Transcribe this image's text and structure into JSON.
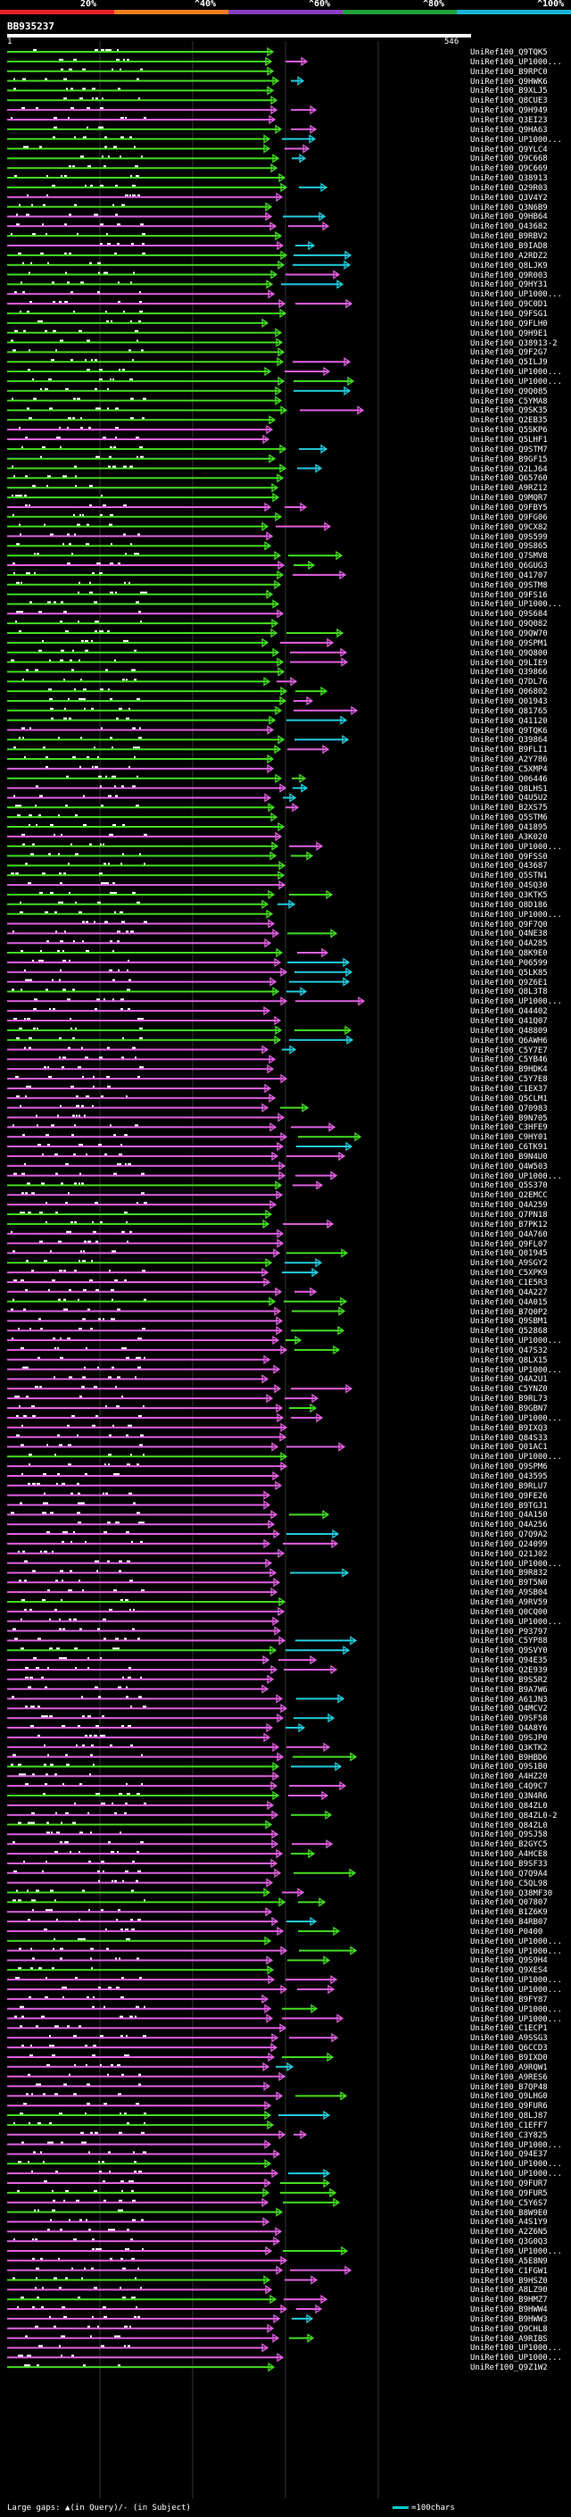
{
  "header": {
    "scale_labels": [
      "20%",
      "^40%",
      "^60%",
      "^80%",
      "^100%"
    ],
    "scale_colors": [
      "#e8202a",
      "#f07f1e",
      "#8a3fbf",
      "#21a43a",
      "#1bb6d6"
    ],
    "query_id": "BB935237",
    "query_start": "1",
    "query_end": "546"
  },
  "colors": {
    "identity_lt40": "#ff8c1a",
    "identity_40_60": "#e060e0",
    "identity_60_80": "#44dd22",
    "identity_gt80": "#22ccdd",
    "gap": "#ffffff"
  },
  "footer": {
    "legend_text": "Large gaps: ▲(in Query)/- (in Subject)",
    "scale_text": "=100chars"
  },
  "chart_data": {
    "type": "alignment",
    "title": "BB935237",
    "query_length": 546,
    "hits": [
      "UniRef100_Q9TQK5",
      "UniRef100_UP1000...",
      "UniRef100_B9RPC0",
      "UniRef100_Q9HWK6",
      "UniRef100_B9XLJ5",
      "UniRef100_Q8CUE3",
      "UniRef100_Q9H949",
      "UniRef100_Q3EI23",
      "UniRef100_Q9HA63",
      "UniRef100_UP1000...",
      "UniRef100_Q9YLC4",
      "UniRef100_Q9C668",
      "UniRef100_Q9C669",
      "UniRef100_Q38913",
      "UniRef100_Q29R03",
      "UniRef100_Q3V4Y2",
      "UniRef100_Q3N6B9",
      "UniRef100_Q9HB64",
      "UniRef100_Q43682",
      "UniRef100_B9RBV2",
      "UniRef100_B9IAD8",
      "UniRef100_A2RDZ2",
      "UniRef100_Q8LJK9",
      "UniRef100_Q9R003",
      "UniRef100_Q9HY31",
      "UniRef100_UP1000...",
      "UniRef100_Q9C0D1",
      "UniRef100_Q9FSG1",
      "UniRef100_Q9FLH0",
      "UniRef100_Q9H9E1",
      "UniRef100_Q38913-2",
      "UniRef100_Q9F2G7",
      "UniRef100_Q5ILJ9",
      "UniRef100_UP1000...",
      "UniRef100_UP1000...",
      "UniRef100_Q9Q085",
      "UniRef100_C5YMA8",
      "UniRef100_Q9SK35",
      "UniRef100_Q2EB35",
      "UniRef100_Q5SKP6",
      "UniRef100_Q5LHF1",
      "UniRef100_Q9STM7",
      "UniRef100_B9GF15",
      "UniRef100_Q2LJ64",
      "UniRef100_Q65760",
      "UniRef100_A9RZ12",
      "UniRef100_Q9MQR7",
      "UniRef100_Q9FBY5",
      "UniRef100_Q9FG06",
      "UniRef100_Q9CX82",
      "UniRef100_Q9S599",
      "UniRef100_Q9S865",
      "UniRef100_Q7SMV8",
      "UniRef100_Q6GUG3",
      "UniRef100_Q41707",
      "UniRef100_Q9STM8",
      "UniRef100_Q9FS16",
      "UniRef100_UP1000...",
      "UniRef100_Q9S684",
      "UniRef100_Q9Q082",
      "UniRef100_Q9QW70",
      "UniRef100_Q9SPM1",
      "UniRef100_Q9Q800",
      "UniRef100_Q9LIE9",
      "UniRef100_Q39866",
      "UniRef100_Q7DL76",
      "UniRef100_Q06802",
      "UniRef100_Q01943",
      "UniRef100_Q81765",
      "UniRef100_Q41120",
      "UniRef100_Q9TQK6",
      "UniRef100_Q39864",
      "UniRef100_B9FLI1",
      "UniRef100_A2Y786",
      "UniRef100_C5XMP4",
      "UniRef100_Q06446",
      "UniRef100_Q8LHS1",
      "UniRef100_Q4U5U2",
      "UniRef100_B2XS75",
      "UniRef100_Q5STM6",
      "UniRef100_Q41895",
      "UniRef100_A3K020",
      "UniRef100_UP1000...",
      "UniRef100_Q9FSS0",
      "UniRef100_Q43687",
      "UniRef100_Q5STN1",
      "UniRef100_Q4SQ30",
      "UniRef100_Q3KTK5",
      "UniRef100_Q8D186",
      "UniRef100_UP1000...",
      "UniRef100_Q9F7Q0",
      "UniRef100_Q4NE38",
      "UniRef100_Q4A285",
      "UniRef100_Q8K9E0",
      "UniRef100_P06599",
      "UniRef100_Q5LK85",
      "UniRef100_Q9Z6E1",
      "UniRef100_Q8L3T8",
      "UniRef100_UP1000...",
      "UniRef100_Q44402",
      "UniRef100_Q41Q07",
      "UniRef100_Q48809",
      "UniRef100_Q6AWH6",
      "UniRef100_C5Y7E7",
      "UniRef100_C5YB46",
      "UniRef100_B9HDK4",
      "UniRef100_C5Y7E8",
      "UniRef100_C1EX37",
      "UniRef100_Q5CLM1",
      "UniRef100_Q70983",
      "UniRef100_B9N705",
      "UniRef100_C3HFE9",
      "UniRef100_C9HY01",
      "UniRef100_C6TK91",
      "UniRef100_B9N4U0",
      "UniRef100_Q4W503",
      "UniRef100_UP1000...",
      "UniRef100_Q5S370",
      "UniRef100_Q2EMCC",
      "UniRef100_Q4A259",
      "UniRef100_Q7PN18",
      "UniRef100_B7PK12",
      "UniRef100_Q4A760",
      "UniRef100_Q9FL07",
      "UniRef100_Q01945",
      "UniRef100_A9SGY2",
      "UniRef100_C5XPK9",
      "UniRef100_C1E5R3",
      "UniRef100_Q4A227",
      "UniRef100_Q4A015",
      "UniRef100_B7Q0P2",
      "UniRef100_Q9SBM1",
      "UniRef100_Q52868",
      "UniRef100_UP1000...",
      "UniRef100_Q47S32",
      "UniRef100_Q8LX15",
      "UniRef100_UP1000...",
      "UniRef100_Q4A2U1",
      "UniRef100_C5YNZ0",
      "UniRef100_B9RL73",
      "UniRef100_B9GBN7",
      "UniRef100_UP1000...",
      "UniRef100_B9IXQ3",
      "UniRef100_Q84S33",
      "UniRef100_Q01AC1",
      "UniRef100_UP1000...",
      "UniRef100_Q9SPM6",
      "UniRef100_Q43595",
      "UniRef100_B9RLU7",
      "UniRef100_Q9FE26",
      "UniRef100_B9TGJ1",
      "UniRef100_Q4A150",
      "UniRef100_Q4A256",
      "UniRef100_Q7Q9A2",
      "UniRef100_Q24099",
      "UniRef100_Q21J02",
      "UniRef100_UP1000...",
      "UniRef100_B9R832",
      "UniRef100_B9T5N0",
      "UniRef100_A9SB04",
      "UniRef100_A9RV59",
      "UniRef100_Q0CQ00",
      "UniRef100_UP1000...",
      "UniRef100_P93797",
      "UniRef100_C5YP88",
      "UniRef100_Q9SVY0",
      "UniRef100_Q94E35",
      "UniRef100_Q2E939",
      "UniRef100_B9S5R2",
      "UniRef100_B9A7W6",
      "UniRef100_A61JN3",
      "UniRef100_Q4MCV2",
      "UniRef100_Q9SF58",
      "UniRef100_Q4A8Y6",
      "UniRef100_Q9SJP0",
      "UniRef100_Q3KTK2",
      "UniRef100_B9HBD6",
      "UniRef100_Q9S1B0",
      "UniRef100_A4HZ20",
      "UniRef100_C4Q9C7",
      "UniRef100_Q3N4R6",
      "UniRef100_Q84ZL0",
      "UniRef100_Q84ZL0-2",
      "UniRef100_Q84ZL0",
      "UniRef100_Q9SJ58",
      "UniRef100_B2GYC5",
      "UniRef100_A4HCE8",
      "UniRef100_B9SF33",
      "UniRef100_Q7Q9A4",
      "UniRef100_C5QL98",
      "UniRef100_Q38MF30",
      "UniRef100_Q07807",
      "UniRef100_B1Z6K9",
      "UniRef100_B4RB07",
      "UniRef100_P0400",
      "UniRef100_UP1000...",
      "UniRef100_UP1000...",
      "UniRef100_Q9S9H4",
      "UniRef100_Q9XES4",
      "UniRef100_UP1000...",
      "UniRef100_UP1000...",
      "UniRef100_B9FY87",
      "UniRef100_UP1000...",
      "UniRef100_UP1000...",
      "UniRef100_C1ECP1",
      "UniRef100_A9SSG3",
      "UniRef100_Q6CCD3",
      "UniRef100_B9IXD0",
      "UniRef100_A9RQW1",
      "UniRef100_A9RES6",
      "UniRef100_B7QP48",
      "UniRef100_Q9LHG0",
      "UniRef100_Q9FUR6",
      "UniRef100_Q8LJ87",
      "UniRef100_C1EFF7",
      "UniRef100_C3Y825",
      "UniRef100_UP1000...",
      "UniRef100_Q94E37",
      "UniRef100_UP1000...",
      "UniRef100_UP1000...",
      "UniRef100_Q9FUR7",
      "UniRef100_Q9FUR5",
      "UniRef100_C5Y6S7",
      "UniRef100_B8W9E0",
      "UniRef100_A4S1Y9",
      "UniRef100_A2Z6N5",
      "UniRef100_Q3G0Q3",
      "UniRef100_UP1000...",
      "UniRef100_A5E8N9",
      "UniRef100_C1FGW1",
      "UniRef100_B9HSZ0",
      "UniRef100_A8LZ90",
      "UniRef100_B9HMZ7",
      "UniRef100_B9HWW4",
      "UniRef100_B9HWW3",
      "UniRef100_Q9CHL8",
      "UniRef100_A9RIBS",
      "UniRef100_UP1000...",
      "UniRef100_UP1000...",
      "UniRef100_Q9Z1W2"
    ]
  }
}
